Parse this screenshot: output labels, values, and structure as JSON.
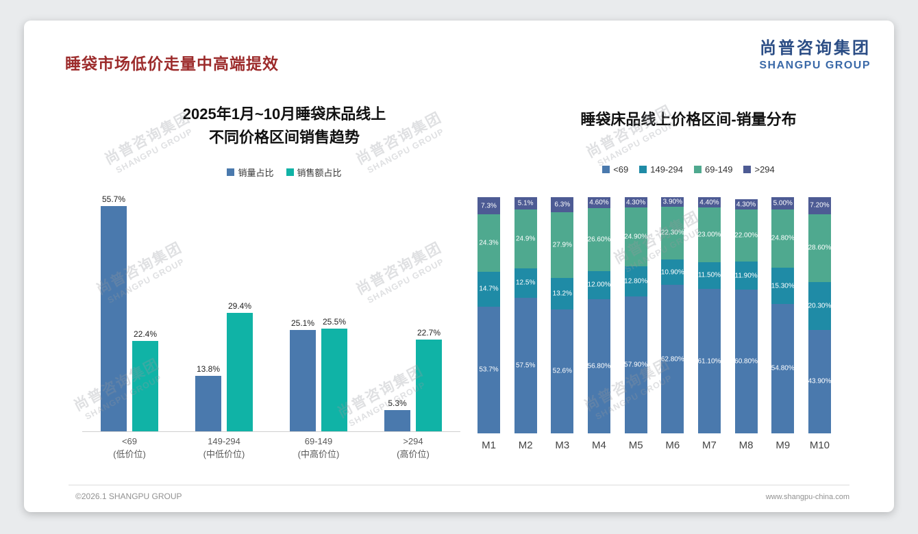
{
  "page": {
    "title": "睡袋市场低价走量中高端提效",
    "logo": {
      "cn": "尚普咨询集团",
      "en": "SHANGPU GROUP"
    },
    "watermark": {
      "line1": "尚普咨询集团",
      "line2": "SHANGPU GROUP"
    },
    "footer": {
      "left": "©2026.1 SHANGPU GROUP",
      "right": "www.shangpu-china.com"
    }
  },
  "colors": {
    "title_red": "#9c2b2b",
    "logo_blue": "#2b4d85",
    "bar_blue": "#4a79ad",
    "bar_teal": "#10b3a6",
    "seg_blue": "#4a79ad",
    "seg_darkteal": "#1f8ba6",
    "seg_green": "#4fa98f",
    "seg_navy": "#4d5b94"
  },
  "chart_data": [
    {
      "type": "bar",
      "title": "2025年1月~10月睡袋床品线上 不同价格区间销售趋势",
      "title_lines": [
        "2025年1月~10月睡袋床品线上",
        "不同价格区间销售趋势"
      ],
      "categories": [
        "<69",
        "149-294",
        "69-149",
        ">294"
      ],
      "category_sublabels": [
        "(低价位)",
        "(中低价位)",
        "(中高价位)",
        "(高价位)"
      ],
      "series": [
        {
          "name": "销量占比",
          "color": "#4a79ad",
          "values": [
            55.7,
            13.8,
            25.1,
            5.3
          ],
          "labels": [
            "55.7%",
            "13.8%",
            "25.1%",
            "5.3%"
          ]
        },
        {
          "name": "销售额占比",
          "color": "#10b3a6",
          "values": [
            22.4,
            29.4,
            25.5,
            22.7
          ],
          "labels": [
            "22.4%",
            "29.4%",
            "25.5%",
            "22.7%"
          ]
        }
      ],
      "xlabel": "",
      "ylabel": "",
      "ylim": [
        0,
        60
      ],
      "grid": false,
      "legend_position": "top"
    },
    {
      "type": "bar",
      "stacked": true,
      "title": "睡袋床品线上价格区间-销量分布",
      "categories": [
        "M1",
        "M2",
        "M3",
        "M4",
        "M5",
        "M6",
        "M7",
        "M8",
        "M9",
        "M10"
      ],
      "series": [
        {
          "name": "<69",
          "color": "#4a79ad",
          "values": [
            53.7,
            57.5,
            52.6,
            56.8,
            57.9,
            62.8,
            61.1,
            60.8,
            54.8,
            43.9
          ],
          "labels": [
            "53.7%",
            "57.5%",
            "52.6%",
            "56.80%",
            "57.90%",
            "62.80%",
            "61.10%",
            "60.80%",
            "54.80%",
            "43.90%"
          ]
        },
        {
          "name": "149-294",
          "color": "#1f8ba6",
          "values": [
            14.7,
            12.5,
            13.2,
            12.0,
            12.8,
            10.9,
            11.5,
            11.9,
            15.3,
            20.3
          ],
          "labels": [
            "14.7%",
            "12.5%",
            "13.2%",
            "12.00%",
            "12.80%",
            "10.90%",
            "11.50%",
            "11.90%",
            "15.30%",
            "20.30%"
          ]
        },
        {
          "name": "69-149",
          "color": "#4fa98f",
          "values": [
            24.3,
            24.9,
            27.9,
            26.6,
            24.9,
            22.3,
            23.0,
            22.0,
            24.8,
            28.6
          ],
          "labels": [
            "24.3%",
            "24.9%",
            "27.9%",
            "26.60%",
            "24.90%",
            "22.30%",
            "23.00%",
            "22.00%",
            "24.80%",
            "28.60%"
          ]
        },
        {
          "name": ">294",
          "color": "#4d5b94",
          "values": [
            7.3,
            5.1,
            6.3,
            4.6,
            4.3,
            3.9,
            4.4,
            4.3,
            5.0,
            7.2
          ],
          "labels": [
            "7.3%",
            "5.1%",
            "6.3%",
            "4.60%",
            "4.30%",
            "3.90%",
            "4.40%",
            "4.30%",
            "5.00%",
            "7.20%"
          ]
        }
      ],
      "xlabel": "",
      "ylabel": "",
      "ylim": [
        0,
        100
      ],
      "grid": false,
      "legend_position": "top"
    }
  ]
}
